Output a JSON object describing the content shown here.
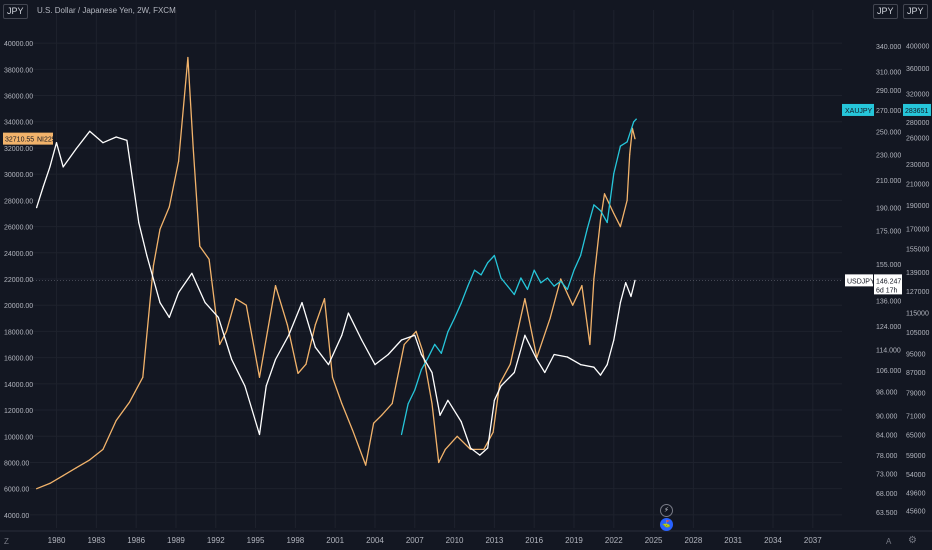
{
  "header": {
    "symbol_tag_left": "JPY",
    "legend_text": "U.S. Dollar / Japanese Yen, 2W, FXCM",
    "tag_right_1": "JPY",
    "tag_right_2": "JPY"
  },
  "footer": {
    "left_letter": "Z",
    "right_letter": "A",
    "right_gear": "⚙"
  },
  "icons": {
    "flash_icon": "⚡",
    "flag_icon": "⛳"
  },
  "colors": {
    "background": "#131722",
    "nikkei": "#f2b36b",
    "xaujpy": "#26c6da",
    "usdjpy": "#ffffff",
    "grid": "#1e222d",
    "text": "#b2b5be"
  },
  "chart_data": {
    "type": "line",
    "x_ticks": [
      "1980",
      "1983",
      "1986",
      "1989",
      "1992",
      "1995",
      "1998",
      "2001",
      "2004",
      "2007",
      "2010",
      "2013",
      "2016",
      "2019",
      "2022",
      "2025",
      "2028",
      "2031",
      "2034",
      "2037"
    ],
    "left_axis": {
      "ticks": [
        "40000.00",
        "38000.00",
        "36000.00",
        "34000.00",
        "32000.00",
        "30000.00",
        "28000.00",
        "26000.00",
        "24000.00",
        "22000.00",
        "20000.00",
        "18000.00",
        "16000.00",
        "14000.00",
        "12000.00",
        "10000.00",
        "8000.00",
        "6000.00",
        "4000.00"
      ],
      "range": [
        3000,
        41000
      ]
    },
    "right_axis_1": {
      "ticks": [
        "340.000",
        "310.000",
        "290.000",
        "270.000",
        "250.000",
        "230.000",
        "210.000",
        "190.000",
        "175.000",
        "155.000",
        "136.000",
        "124.000",
        "114.000",
        "106.000",
        "98.000",
        "90.000",
        "84.000",
        "78.000",
        "73.000",
        "68.000",
        "63.500"
      ],
      "scale": "log",
      "range": [
        60,
        360
      ]
    },
    "right_axis_2": {
      "ticks": [
        "400000",
        "360000",
        "320000",
        "280000",
        "260000",
        "230000",
        "210000",
        "190000",
        "170000",
        "155000",
        "139000",
        "127000",
        "115000",
        "105000",
        "95000",
        "87000",
        "79000",
        "71000",
        "65000",
        "59000",
        "54000",
        "49600",
        "45600"
      ],
      "scale": "log",
      "range": [
        42000,
        430000
      ]
    },
    "labels": {
      "nikkei_value": "32710.55",
      "nikkei_name": "NI225",
      "xau_name": "XAUJPY",
      "xau_axis_value": "270.000",
      "xau_value": "283651",
      "usd_name": "USDJPY",
      "usd_value": "146.247",
      "usd_countdown": "6d 17h"
    },
    "series": [
      {
        "name": "NI225",
        "axis": "left",
        "x": [
          1978.5,
          1979.5,
          1980.5,
          1981.5,
          1982.5,
          1983.5,
          1984.5,
          1985.5,
          1986.5,
          1987.3,
          1987.8,
          1988.5,
          1989.2,
          1989.9,
          1990.3,
          1990.8,
          1991.5,
          1992.3,
          1992.8,
          1993.5,
          1994.3,
          1995.3,
          1995.9,
          1996.5,
          1997.4,
          1998.2,
          1998.8,
          1999.5,
          2000.2,
          2000.8,
          2001.5,
          2002.3,
          2003.3,
          2003.9,
          2004.5,
          2005.3,
          2006.2,
          2007.1,
          2007.6,
          2008.3,
          2008.8,
          2009.3,
          2010.2,
          2011.2,
          2012.2,
          2012.9,
          2013.4,
          2014.2,
          2015.3,
          2016.2,
          2017.2,
          2018.0,
          2018.9,
          2019.6,
          2020.2,
          2020.5,
          2021.0,
          2021.3,
          2022.0,
          2022.5,
          2023.0,
          2023.2,
          2023.4,
          2023.6
        ],
        "values": [
          6000,
          6400,
          7000,
          7600,
          8200,
          9000,
          11200,
          12600,
          14500,
          23000,
          25800,
          27500,
          31000,
          38900,
          32000,
          24500,
          23500,
          17000,
          18000,
          20500,
          20000,
          14500,
          18000,
          21500,
          18500,
          14800,
          15500,
          18500,
          20500,
          14500,
          12500,
          10500,
          7800,
          11000,
          11600,
          12500,
          17000,
          18000,
          16500,
          12500,
          8000,
          9000,
          10000,
          9000,
          9000,
          10300,
          14000,
          15500,
          20500,
          16000,
          19000,
          22000,
          20000,
          21500,
          17000,
          22000,
          26500,
          28500,
          27000,
          26000,
          28000,
          31500,
          33500,
          32700
        ]
      },
      {
        "name": "XAUJPY",
        "axis": "right2",
        "x": [
          2006.0,
          2006.5,
          2007.0,
          2007.5,
          2008.0,
          2008.5,
          2009.0,
          2009.5,
          2010.0,
          2010.5,
          2011.0,
          2011.5,
          2012.0,
          2012.5,
          2013.0,
          2013.5,
          2014.0,
          2014.5,
          2015.0,
          2015.5,
          2016.0,
          2016.5,
          2017.0,
          2017.5,
          2018.0,
          2018.5,
          2019.0,
          2019.5,
          2020.0,
          2020.5,
          2021.0,
          2021.5,
          2022.0,
          2022.5,
          2023.0,
          2023.5,
          2023.7
        ],
        "values": [
          65000,
          75000,
          80000,
          88000,
          93000,
          99000,
          95000,
          105000,
          112000,
          120000,
          130000,
          140000,
          137000,
          145000,
          150000,
          135000,
          130000,
          125000,
          135000,
          128000,
          140000,
          132000,
          135000,
          130000,
          133000,
          128000,
          140000,
          150000,
          170000,
          190000,
          185000,
          175000,
          220000,
          250000,
          255000,
          280000,
          283651
        ]
      },
      {
        "name": "USDJPY",
        "axis": "right1",
        "x": [
          1978.5,
          1979.0,
          1979.5,
          1980.0,
          1980.5,
          1981.5,
          1982.5,
          1983.5,
          1984.5,
          1985.3,
          1986.2,
          1986.8,
          1987.8,
          1988.5,
          1989.2,
          1990.2,
          1991.2,
          1992.2,
          1993.2,
          1994.2,
          1995.3,
          1995.8,
          1996.5,
          1997.5,
          1998.5,
          1999.5,
          2000.5,
          2001.5,
          2002.0,
          2003.0,
          2004.0,
          2005.0,
          2006.0,
          2007.0,
          2007.5,
          2008.3,
          2008.9,
          2009.5,
          2010.5,
          2011.2,
          2011.9,
          2012.5,
          2013.0,
          2013.5,
          2014.5,
          2015.3,
          2016.2,
          2016.8,
          2017.5,
          2018.5,
          2019.5,
          2020.5,
          2021.0,
          2021.5,
          2022.0,
          2022.5,
          2022.9,
          2023.3,
          2023.6
        ],
        "values": [
          190,
          205,
          220,
          240,
          220,
          235,
          250,
          240,
          245,
          242,
          180,
          160,
          135,
          128,
          140,
          150,
          135,
          128,
          110,
          100,
          84,
          100,
          110,
          120,
          135,
          115,
          108,
          120,
          130,
          118,
          108,
          112,
          118,
          120,
          112,
          105,
          90,
          95,
          88,
          80,
          78,
          80,
          95,
          100,
          105,
          120,
          110,
          105,
          112,
          111,
          108,
          107,
          104,
          108,
          118,
          135,
          145,
          138,
          146.247
        ]
      }
    ]
  }
}
